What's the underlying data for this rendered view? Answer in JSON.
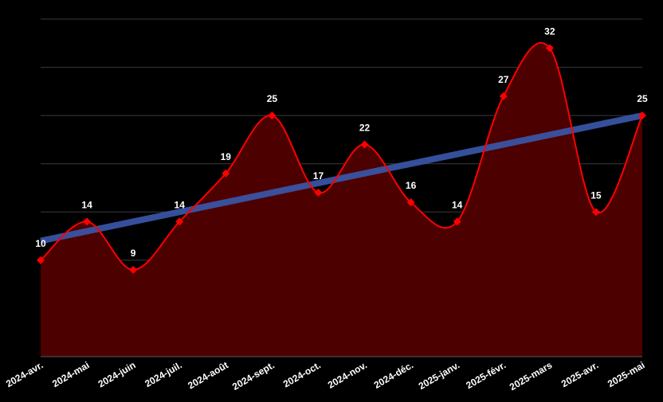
{
  "chart_data": {
    "type": "area",
    "categories": [
      "2024-avr.",
      "2024-mai",
      "2024-juin",
      "2024-juil.",
      "2024-août",
      "2024-sept.",
      "2024-oct.",
      "2024-nov.",
      "2024-déc.",
      "2025-janv.",
      "2025-févr.",
      "2025-mars",
      "2025-avr.",
      "2025-mai"
    ],
    "series": [
      {
        "values": [
          10,
          14,
          9,
          14,
          19,
          25,
          17,
          22,
          16,
          14,
          27,
          32,
          15,
          25
        ],
        "color": "#ff0000",
        "fill": "#4d0000",
        "marker": "diamond"
      }
    ],
    "trendline": {
      "start": 12,
      "end": 25,
      "color": "#3a56a8"
    },
    "title": "",
    "xlabel": "",
    "ylabel": "",
    "ylim": [
      0,
      35
    ],
    "grid": true,
    "show_y_tick_labels": false,
    "data_labels": true,
    "background": "#000000"
  }
}
